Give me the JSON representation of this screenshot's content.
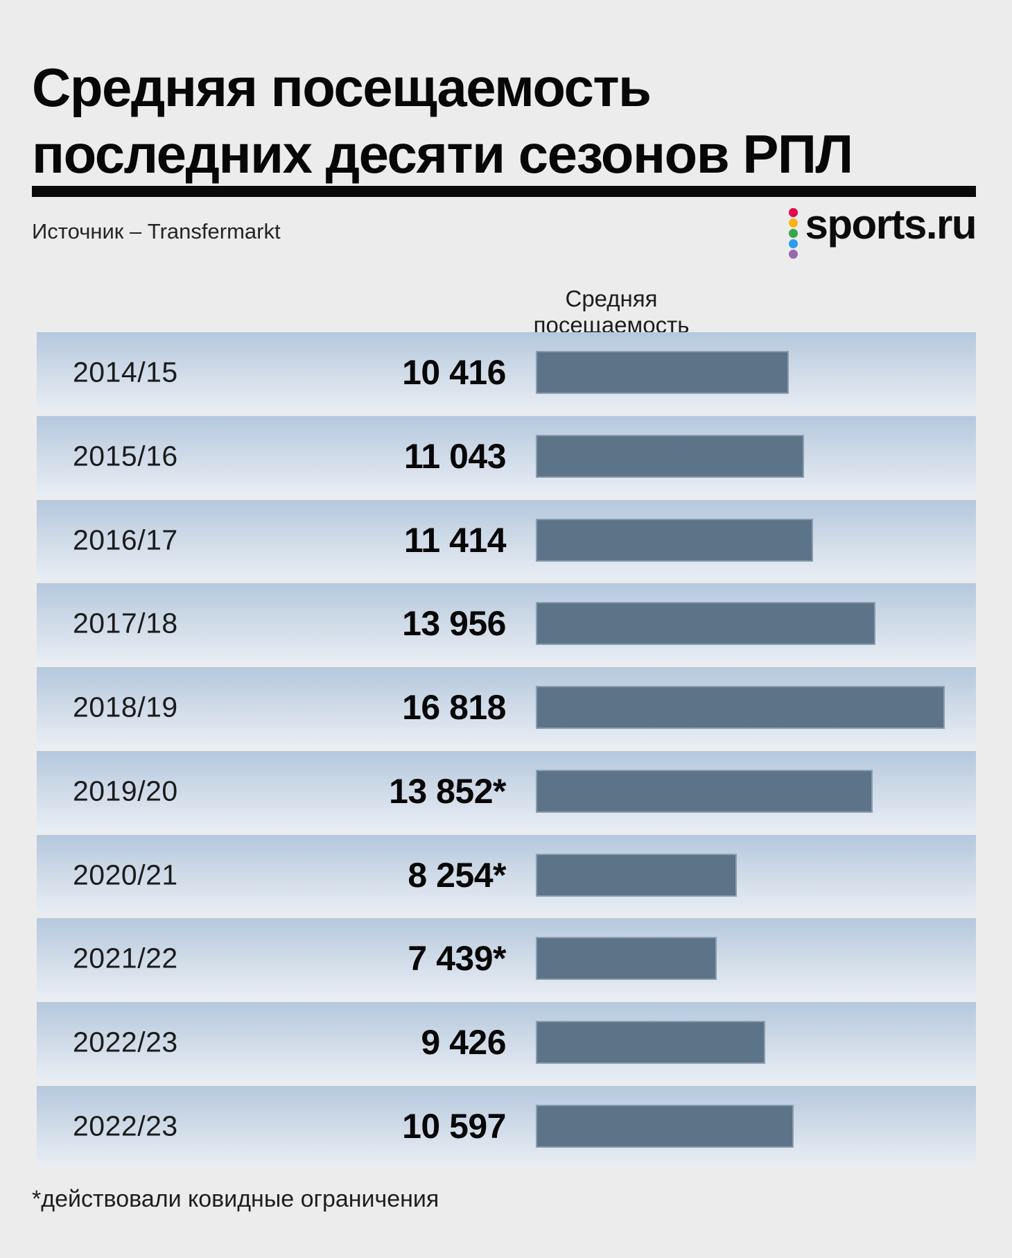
{
  "header": {
    "title": "Средняя посещаемость последних десяти сезонов РПЛ",
    "source_label": "Источник – Transfermarkt",
    "logo": {
      "text": "sports.ru",
      "dot_colors": [
        "#e3074c",
        "#f9b415",
        "#3aa64c",
        "#2b9df3",
        "#9a66b2"
      ]
    }
  },
  "chart_data": {
    "type": "bar",
    "orientation": "horizontal",
    "title": "Средняя посещаемость последних десяти сезонов РПЛ",
    "column_header": "Средняя посещаемость",
    "categories": [
      "2014/15",
      "2015/16",
      "2016/17",
      "2017/18",
      "2018/19",
      "2019/20",
      "2020/21",
      "2021/22",
      "2022/23",
      "2022/23"
    ],
    "values": [
      10416,
      11043,
      11414,
      13956,
      16818,
      13852,
      8254,
      7439,
      9426,
      10597
    ],
    "value_labels": [
      "10 416",
      "11 043",
      "11 414",
      "13 956",
      "16 818",
      "13 852*",
      "8 254*",
      "7 439*",
      "9 426",
      "10 597"
    ],
    "xlim": [
      0,
      16818
    ],
    "grid": false,
    "legend": false,
    "source": "Transfermarkt",
    "footnote": "*действовали ковидные ограничения",
    "bar_color": "#5d7388"
  },
  "footnote": "*действовали ковидные ограничения"
}
